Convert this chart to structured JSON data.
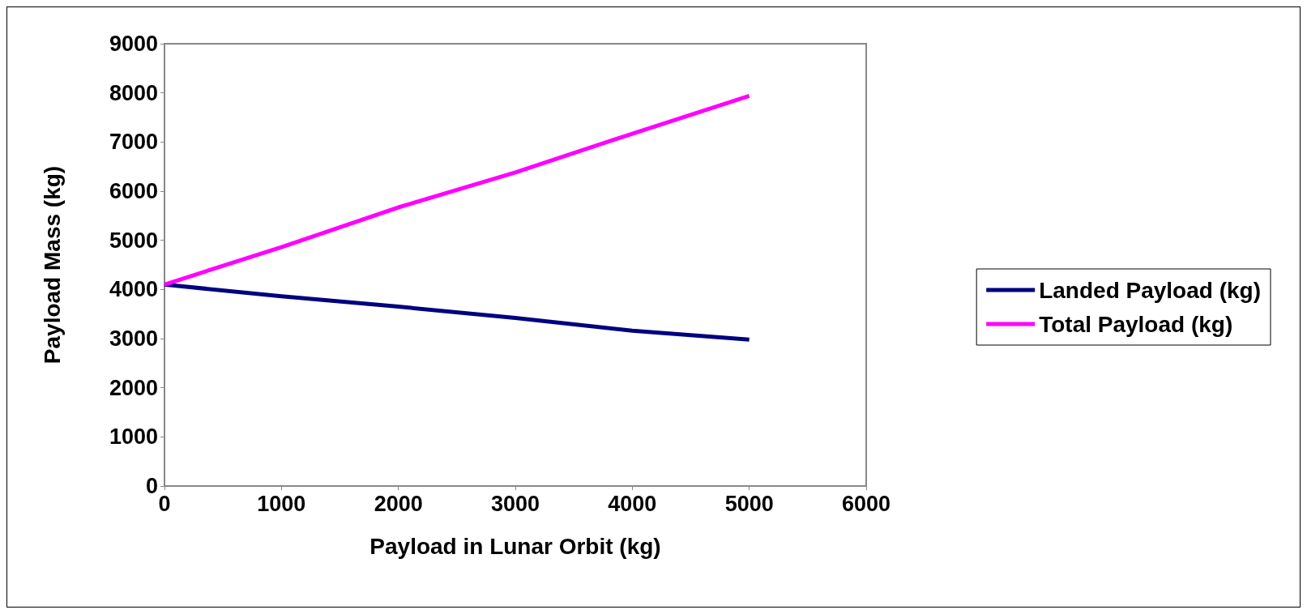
{
  "chart_data": {
    "type": "line",
    "xlabel": "Payload in Lunar Orbit (kg)",
    "ylabel": "Payload Mass (kg)",
    "x": [
      0,
      1000,
      2000,
      3000,
      4000,
      5000
    ],
    "series": [
      {
        "name": "Landed Payload (kg)",
        "color": "#000080",
        "values": [
          4100,
          3860,
          3650,
          3420,
          3160,
          2980
        ]
      },
      {
        "name": "Total Payload (kg)",
        "color": "#ff00ff",
        "values": [
          4100,
          4860,
          5670,
          6380,
          7170,
          7940
        ]
      }
    ],
    "xlim": [
      0,
      6000
    ],
    "xticks": [
      0,
      1000,
      2000,
      3000,
      4000,
      5000,
      6000
    ],
    "ylim": [
      0,
      9000
    ],
    "yticks": [
      0,
      1000,
      2000,
      3000,
      4000,
      5000,
      6000,
      7000,
      8000,
      9000
    ],
    "grid": false,
    "legend": "right",
    "marker": "none",
    "line_style": "solid"
  }
}
